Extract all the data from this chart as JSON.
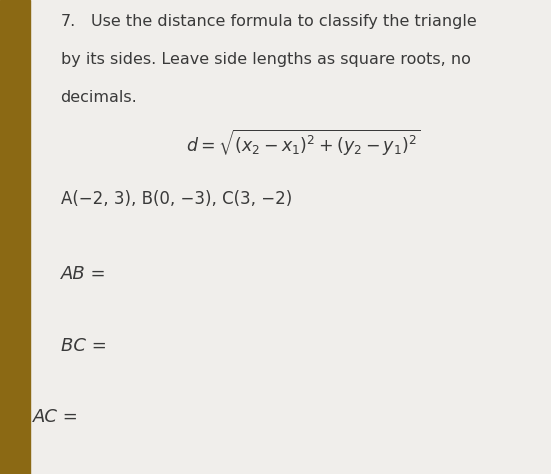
{
  "background_color": "#f0eeeb",
  "left_edge_color": "#8B6914",
  "left_edge_width": 0.055,
  "number": "7.",
  "line1": "Use the distance formula to classify the triangle",
  "line2": "by its sides. Leave side lengths as square roots, no",
  "line3": "decimals.",
  "formula_text": "$d = \\sqrt{(x_2 - x_1)^2 + (y_2 - y_1)^2}$",
  "points_text": "A(−2, 3), B(0, −3), C(3, −2)",
  "ab_label": "AB =",
  "bc_label": "BC =",
  "ac_label": "AC =",
  "text_color": "#3a3a3a",
  "font_size_body": 11.5,
  "font_size_formula": 12.5,
  "font_size_labels": 13,
  "font_size_points": 12
}
